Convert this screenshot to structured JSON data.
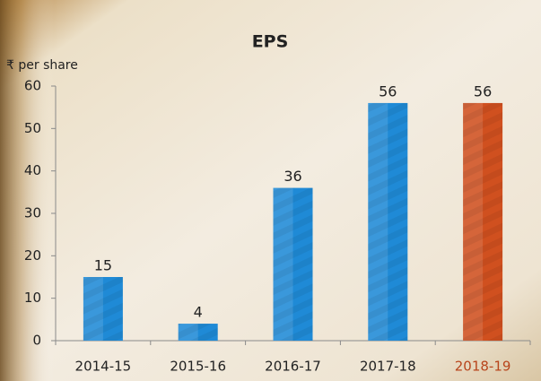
{
  "chart_data": {
    "type": "bar",
    "title": "EPS",
    "y_label": "₹ per share",
    "categories": [
      "2014-15",
      "2015-16",
      "2016-17",
      "2017-18",
      "2018-19"
    ],
    "values": [
      15,
      4,
      36,
      56,
      56
    ],
    "colors": [
      "#1f8ad6",
      "#1f8ad6",
      "#1f8ad6",
      "#1f8ad6",
      "#d0501f"
    ],
    "category_label_colors": [
      "#222222",
      "#222222",
      "#222222",
      "#222222",
      "#b8451c"
    ],
    "ylim": [
      0,
      60
    ],
    "yticks": [
      0,
      10,
      20,
      30,
      40,
      50,
      60
    ],
    "grid": false
  }
}
